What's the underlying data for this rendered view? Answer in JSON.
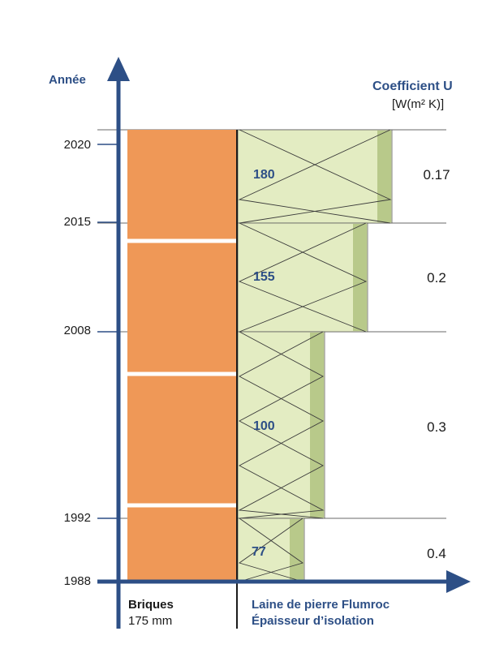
{
  "axis": {
    "y_label": "Année"
  },
  "u_header": {
    "title": "Coefficient U",
    "unit": "[W(m² K)]"
  },
  "years": [
    "2020",
    "2015",
    "2008",
    "1992",
    "1988"
  ],
  "insulation": [
    {
      "period": "2015–2020",
      "thickness_mm": "180",
      "u_value": "0.17"
    },
    {
      "period": "2008–2015",
      "thickness_mm": "155",
      "u_value": "0.2"
    },
    {
      "period": "1992–2008",
      "thickness_mm": "100",
      "u_value": "0.3"
    },
    {
      "period": "1988–1992",
      "thickness_mm": "77",
      "u_value": "0.4"
    }
  ],
  "footer": {
    "brick_title": "Briques",
    "brick_size": "175 mm",
    "insulation_title": "Laine de pierre Flumroc",
    "insulation_sub": "Épaisseur d’isolation"
  },
  "colors": {
    "axis_blue": "#2d4f86",
    "brick": "#ef9857",
    "insulation": "#e3ecc2",
    "insulation_edge": "#b8c98a",
    "line": "#6a6a6a"
  }
}
